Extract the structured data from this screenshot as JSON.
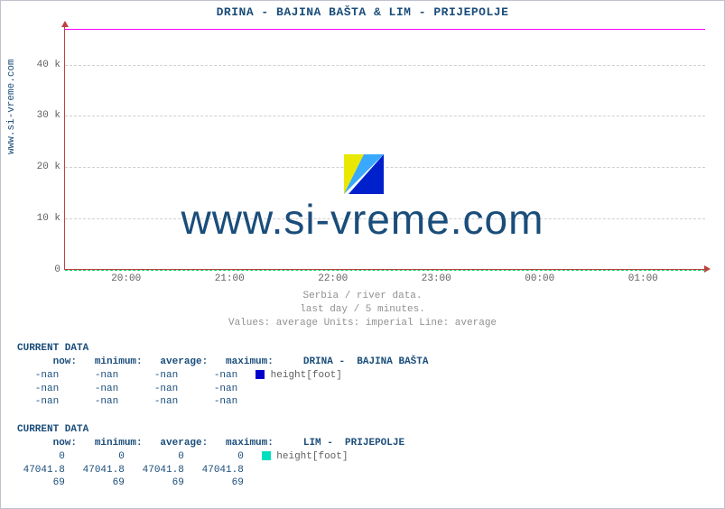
{
  "title": "DRINA -  BAJINA BAŠTA &  LIM -  PRIJEPOLJE",
  "ylabel_text": "www.si-vreme.com",
  "watermark": "www.si-vreme.com",
  "subtitle": {
    "line1": "Serbia / river data.",
    "line2": "last day / 5 minutes.",
    "line3": "Values: average  Units: imperial  Line: average"
  },
  "chart": {
    "type": "line",
    "background_color": "#ffffff",
    "grid_color": "#d0d0d0",
    "axis_color": "#c04040",
    "text_color": "#606060",
    "title_color": "#1a4d7a",
    "ylim": [
      0,
      47500
    ],
    "yticks": [
      {
        "v": 0,
        "label": "0"
      },
      {
        "v": 10000,
        "label": "10 k"
      },
      {
        "v": 20000,
        "label": "20 k"
      },
      {
        "v": 30000,
        "label": "30 k"
      },
      {
        "v": 40000,
        "label": "40 k"
      }
    ],
    "xticks": [
      "20:00",
      "21:00",
      "22:00",
      "23:00",
      "00:00",
      "01:00"
    ],
    "series": [
      {
        "name": "DRINA",
        "color": "#ff00ff",
        "value": 47041.8,
        "style": "solid"
      },
      {
        "name": "LIM",
        "color": "#00cc66",
        "value": 0,
        "style": "dashed"
      }
    ]
  },
  "blocks": [
    {
      "header": "CURRENT DATA",
      "station": "DRINA -  BAJINA BAŠTA",
      "swatch_color": "#0000cc",
      "legend": "height[foot]",
      "col_header": "      now:   minimum:   average:   maximum:",
      "rows": [
        "   -nan      -nan      -nan      -nan",
        "   -nan      -nan      -nan      -nan",
        "   -nan      -nan      -nan      -nan"
      ]
    },
    {
      "header": "CURRENT DATA",
      "station": "LIM -  PRIJEPOLJE",
      "swatch_color": "#00e0c0",
      "legend": "height[foot]",
      "col_header": "      now:   minimum:   average:   maximum:",
      "rows": [
        "       0         0         0         0",
        " 47041.8   47041.8   47041.8   47041.8",
        "      69        69        69        69"
      ]
    }
  ],
  "logo_colors": {
    "left": "#e8e800",
    "mid": "#39a9ff",
    "right": "#0020cc"
  }
}
